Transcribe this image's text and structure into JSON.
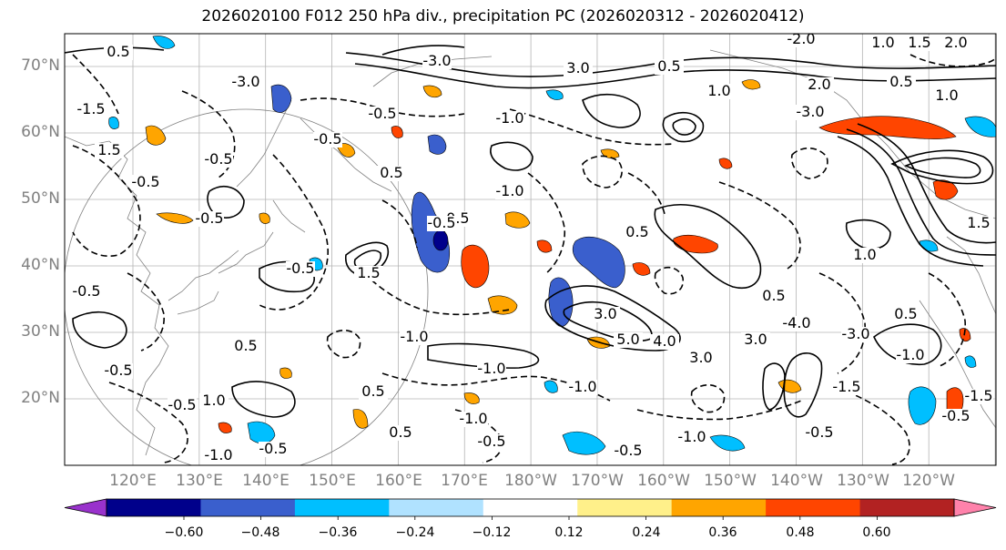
{
  "title": "2026020100 F012 250 hPa div., precipitation PC (2026020312 - 2026020412)",
  "lat_labels": [
    "70°N",
    "60°N",
    "50°N",
    "40°N",
    "30°N",
    "20°N"
  ],
  "lon_labels": [
    "120°E",
    "130°E",
    "140°E",
    "150°E",
    "160°E",
    "170°E",
    "180°W",
    "170°W",
    "160°W",
    "150°W",
    "140°W",
    "130°W",
    "120°W"
  ],
  "colorbar": {
    "colors": [
      "#9932cc",
      "#00008b",
      "#3a5fcd",
      "#00bfff",
      "#b0e2ff",
      "#ffffff",
      "#fff08a",
      "#ffa500",
      "#ff4500",
      "#b22222",
      "#ff82ab"
    ],
    "tick_labels": [
      "−0.60",
      "−0.48",
      "−0.36",
      "−0.24",
      "−0.12",
      "0.12",
      "0.24",
      "0.36",
      "0.48",
      "0.60"
    ]
  },
  "contour_labels": [
    "0.5",
    "-0.5",
    "1.0",
    "-1.0",
    "1.5",
    "-1.5",
    "2.0",
    "-2.0",
    "3.0",
    "-3.0",
    "-4.0",
    "4.0",
    "5.0"
  ],
  "colors": {
    "contour": "#000000",
    "graticule": "#b4b4b4",
    "coast": "#808080"
  }
}
